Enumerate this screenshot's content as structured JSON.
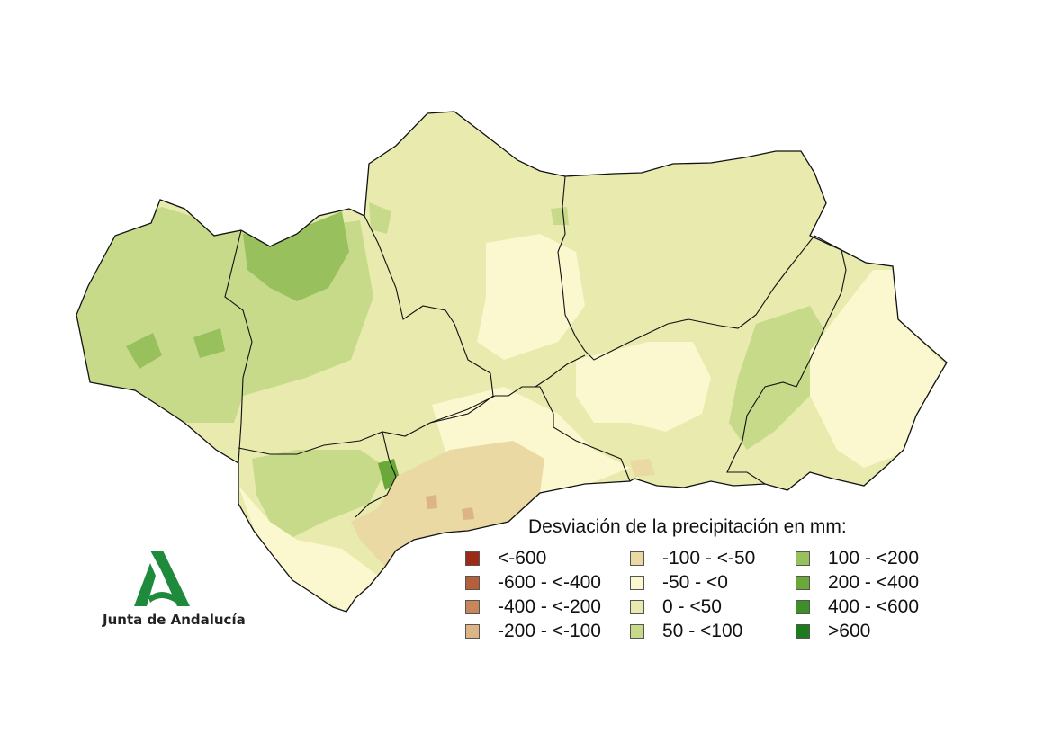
{
  "map": {
    "region": "Andalucía",
    "base_color": "#e8eaae",
    "province_border_color": "#111111"
  },
  "legend": {
    "title": "Desviación de la precipitación en mm:",
    "items": [
      {
        "label": "<-600",
        "color": "#9b2a16"
      },
      {
        "label": "-600 - <-400",
        "color": "#b5603a"
      },
      {
        "label": "-400 - <-200",
        "color": "#c8875b"
      },
      {
        "label": "-200 - <-100",
        "color": "#dcb486"
      },
      {
        "label": "-100 - <-50",
        "color": "#ead9a2"
      },
      {
        "label": "-50 - <0",
        "color": "#fbf8cf"
      },
      {
        "label": "0 - <50",
        "color": "#e8eaae"
      },
      {
        "label": "50 - <100",
        "color": "#c7da8a"
      },
      {
        "label": "100 - <200",
        "color": "#98c15e"
      },
      {
        "label": "200 - <400",
        "color": "#6aa83a"
      },
      {
        "label": ">600",
        "color": "#1d7a1d"
      },
      {
        "label": "400 - <600",
        "color": "#3f8f28"
      }
    ]
  },
  "logo": {
    "text": "Junta de Andalucía",
    "color": "#1e8a3c"
  }
}
